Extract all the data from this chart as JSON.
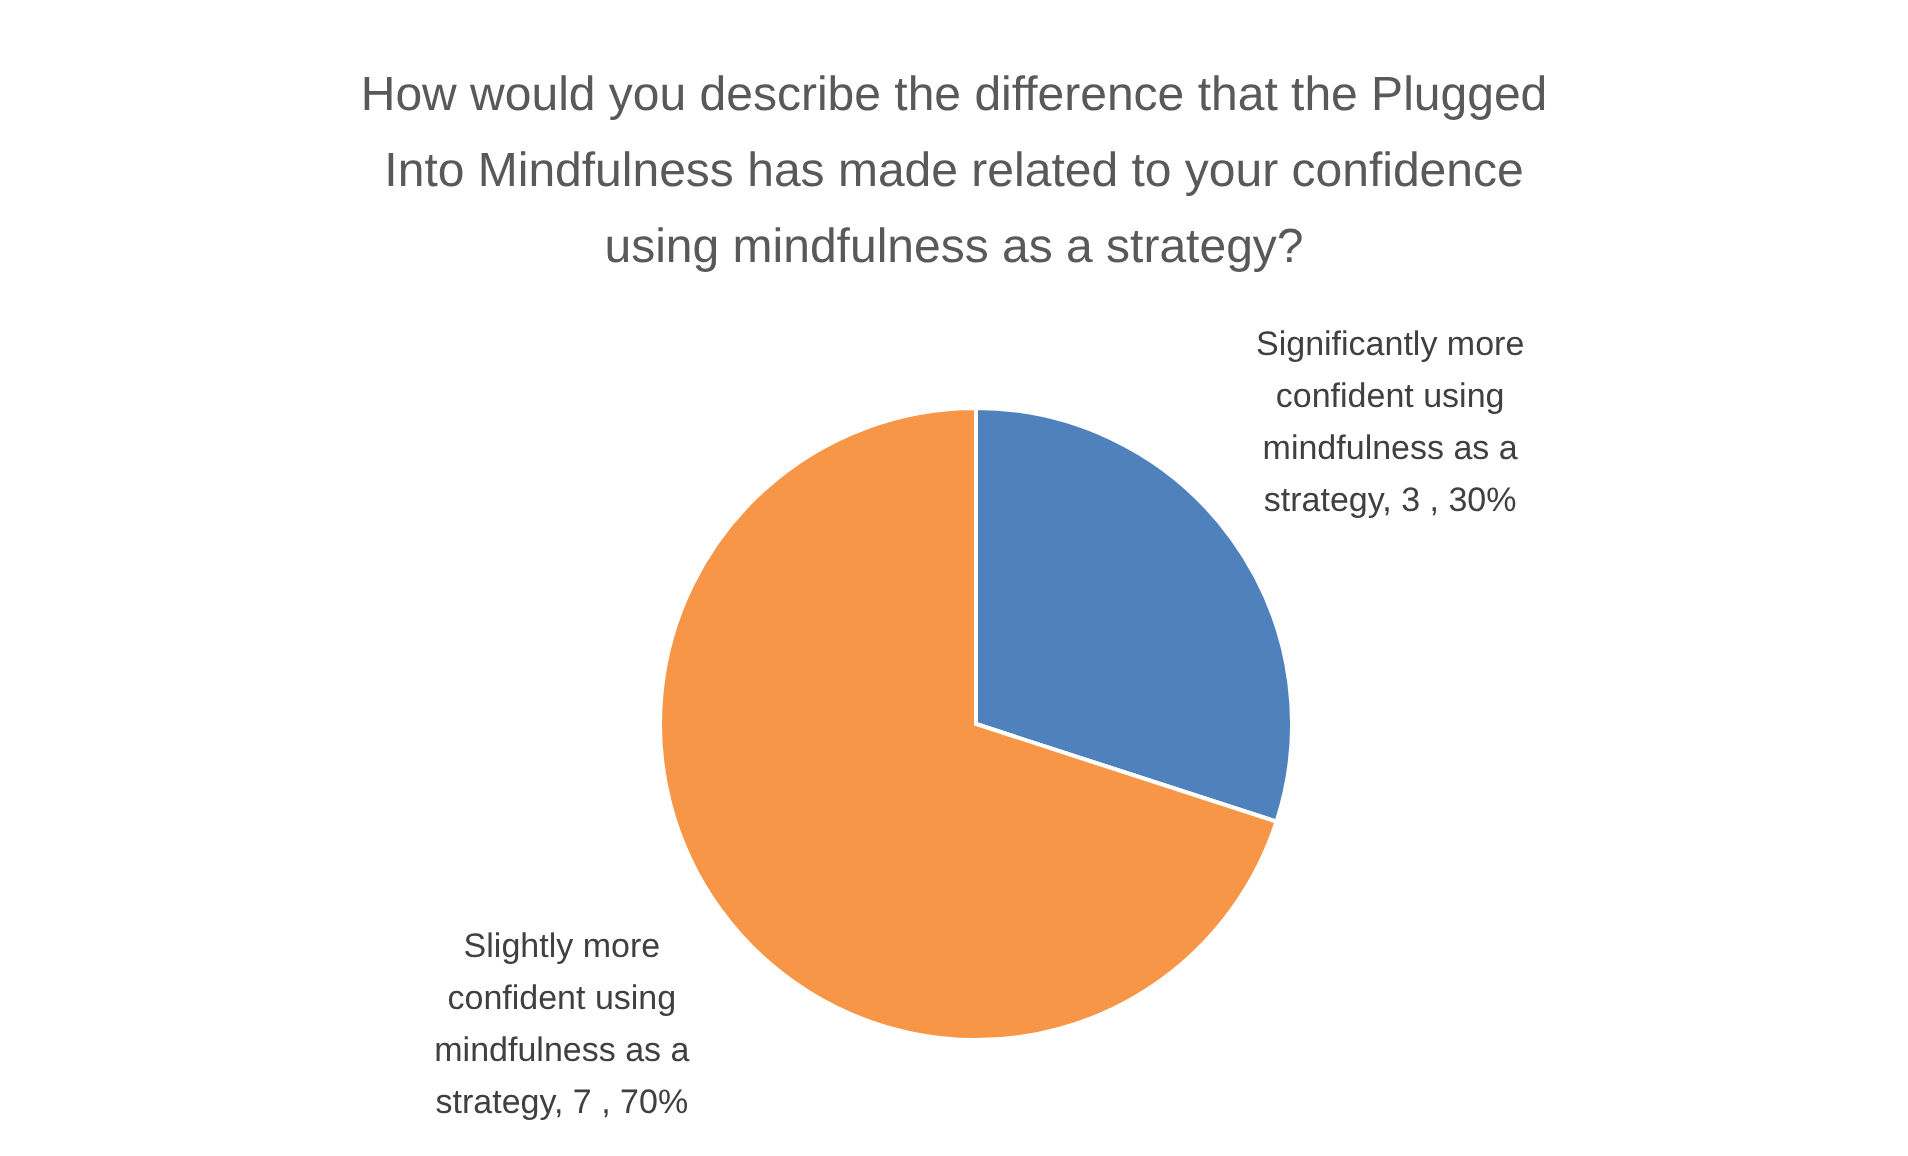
{
  "chart_data": {
    "type": "pie",
    "title": "How would you describe the difference that the Plugged Into Mindfulness has made related to your confidence using mindfulness as a strategy?",
    "categories": [
      "Significantly more confident using mindfulness as a strategy",
      "Slightly more confident using mindfulness as a strategy"
    ],
    "values": [
      3,
      7
    ],
    "value_labels": [
      "3 , 30%",
      "7 , 70%"
    ],
    "colors": [
      "#4f81bd",
      "#f79646"
    ],
    "legend": false
  }
}
